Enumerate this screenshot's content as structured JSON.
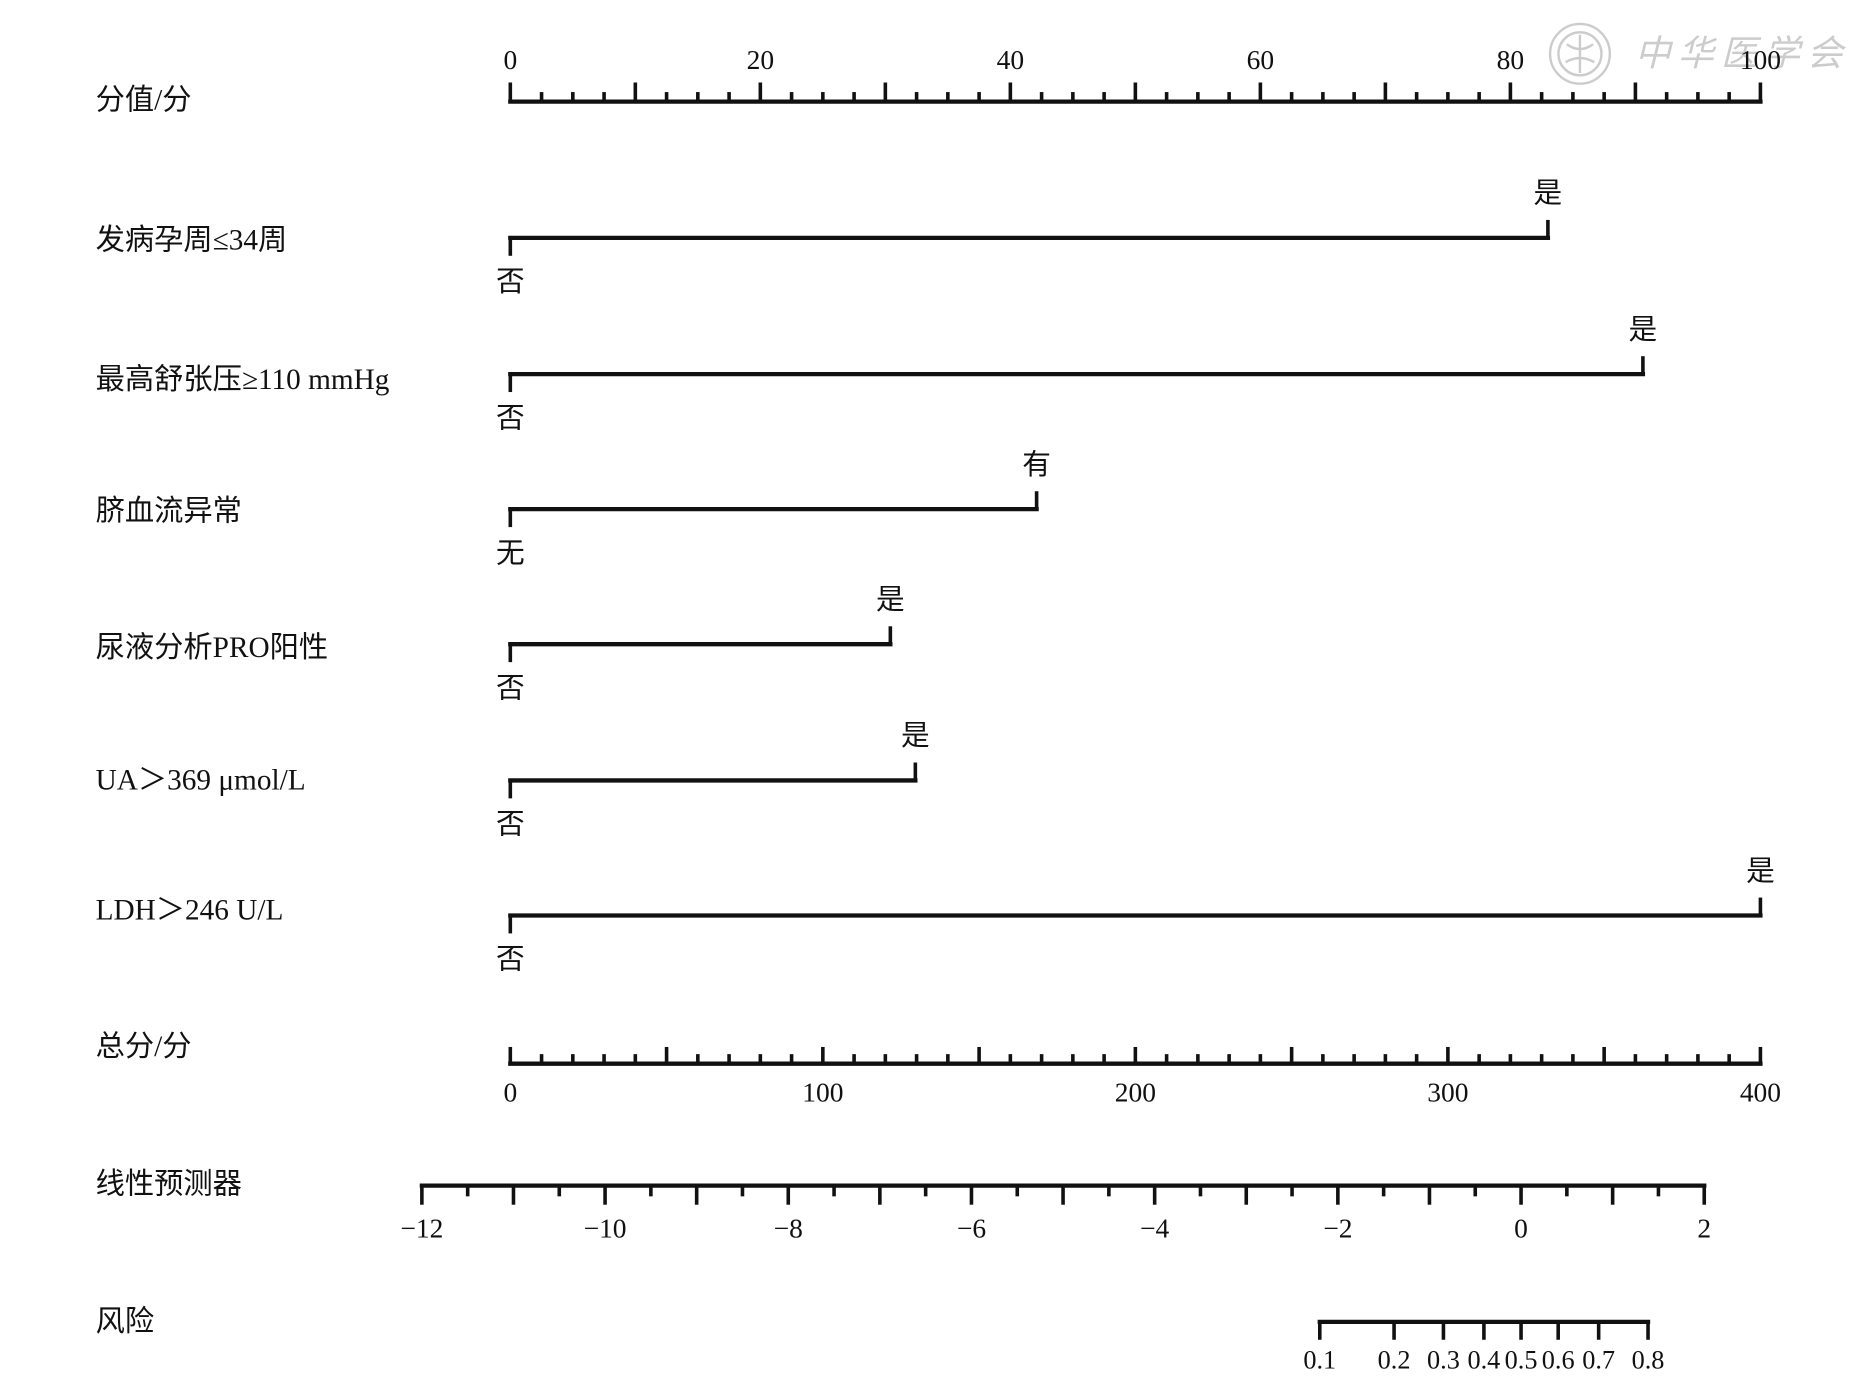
{
  "watermark": {
    "text": "中华医学会",
    "emblem_icon": "cma-emblem-icon"
  },
  "colors": {
    "ink": "#111111",
    "watermark": "#cccccc",
    "background": "#ffffff"
  },
  "chart_data": {
    "type": "bar",
    "subtype": "nomogram",
    "orientation": "horizontal",
    "points_scale": {
      "label": "分值/分",
      "range": [
        0,
        100
      ],
      "tick_values": [
        0,
        20,
        40,
        60,
        80,
        100
      ],
      "tick_labels": [
        "0",
        "20",
        "40",
        "60",
        "80",
        "100"
      ],
      "major_tick_step": 10,
      "minor_tick_step": 2.5
    },
    "predictors": [
      {
        "label": "发病孕周≤34周",
        "levels": [
          {
            "label": "否",
            "points": 0
          },
          {
            "label": "是",
            "points": 83
          }
        ]
      },
      {
        "label": "最高舒张压≥110 mmHg",
        "levels": [
          {
            "label": "否",
            "points": 0
          },
          {
            "label": "是",
            "points": 90.6
          }
        ]
      },
      {
        "label": "脐血流异常",
        "levels": [
          {
            "label": "无",
            "points": 0
          },
          {
            "label": "有",
            "points": 42.1
          }
        ]
      },
      {
        "label": "尿液分析PRO阳性",
        "levels": [
          {
            "label": "否",
            "points": 0
          },
          {
            "label": "是",
            "points": 30.4
          }
        ]
      },
      {
        "label": "UA＞369 μmol/L",
        "levels": [
          {
            "label": "否",
            "points": 0
          },
          {
            "label": "是",
            "points": 32.4
          }
        ]
      },
      {
        "label": "LDH＞246 U/L",
        "levels": [
          {
            "label": "否",
            "points": 0
          },
          {
            "label": "是",
            "points": 100
          }
        ]
      }
    ],
    "total_points_scale": {
      "label": "总分/分",
      "range": [
        0,
        400
      ],
      "tick_values": [
        0,
        100,
        200,
        300,
        400
      ],
      "tick_labels": [
        "0",
        "100",
        "200",
        "300",
        "400"
      ],
      "major_tick_step": 50,
      "minor_tick_step": 10
    },
    "linear_predictor_scale": {
      "label": "线性预测器",
      "range": [
        -12,
        2
      ],
      "tick_values": [
        -12,
        -10,
        -8,
        -6,
        -4,
        -2,
        0,
        2
      ],
      "tick_labels": [
        "−12",
        "−10",
        "−8",
        "−6",
        "−4",
        "−2",
        "0",
        "2"
      ],
      "major_tick_step": 1,
      "minor_tick_step": 0.5
    },
    "risk_scale": {
      "label": "风险",
      "scale": "logit",
      "range": [
        0.1,
        0.8
      ],
      "tick_values": [
        0.1,
        0.2,
        0.3,
        0.4,
        0.5,
        0.6,
        0.7,
        0.8
      ],
      "tick_labels": [
        "0.1",
        "0.2",
        "0.3",
        "0.4",
        "0.5",
        "0.6",
        "0.7",
        "0.8"
      ]
    },
    "grid": false
  }
}
